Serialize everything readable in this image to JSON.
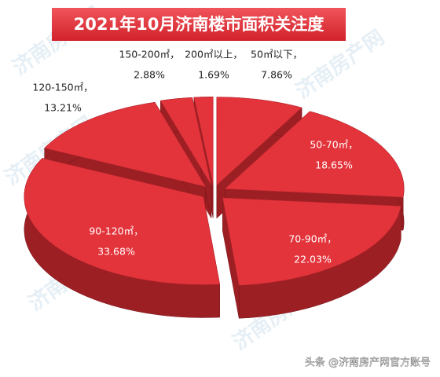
{
  "chart_data": {
    "type": "pie3d",
    "title": "2021年10月济南楼市面积关注度",
    "categories": [
      "50㎡以下，",
      "50-70㎡，",
      "70-90㎡，",
      "90-120㎡，",
      "120-150㎡，",
      "150-200㎡，",
      "200㎡以上，"
    ],
    "values": [
      7.86,
      18.65,
      22.03,
      33.68,
      13.21,
      2.88,
      1.69
    ],
    "value_labels": [
      "7.86%",
      "18.65%",
      "22.03%",
      "33.68%",
      "13.21%",
      "2.88%",
      "1.69%"
    ],
    "color": "#e3343c",
    "side_color": "#9c1f24"
  },
  "watermark": "济南房产网",
  "footer": "头条 @济南房产网官方账号"
}
